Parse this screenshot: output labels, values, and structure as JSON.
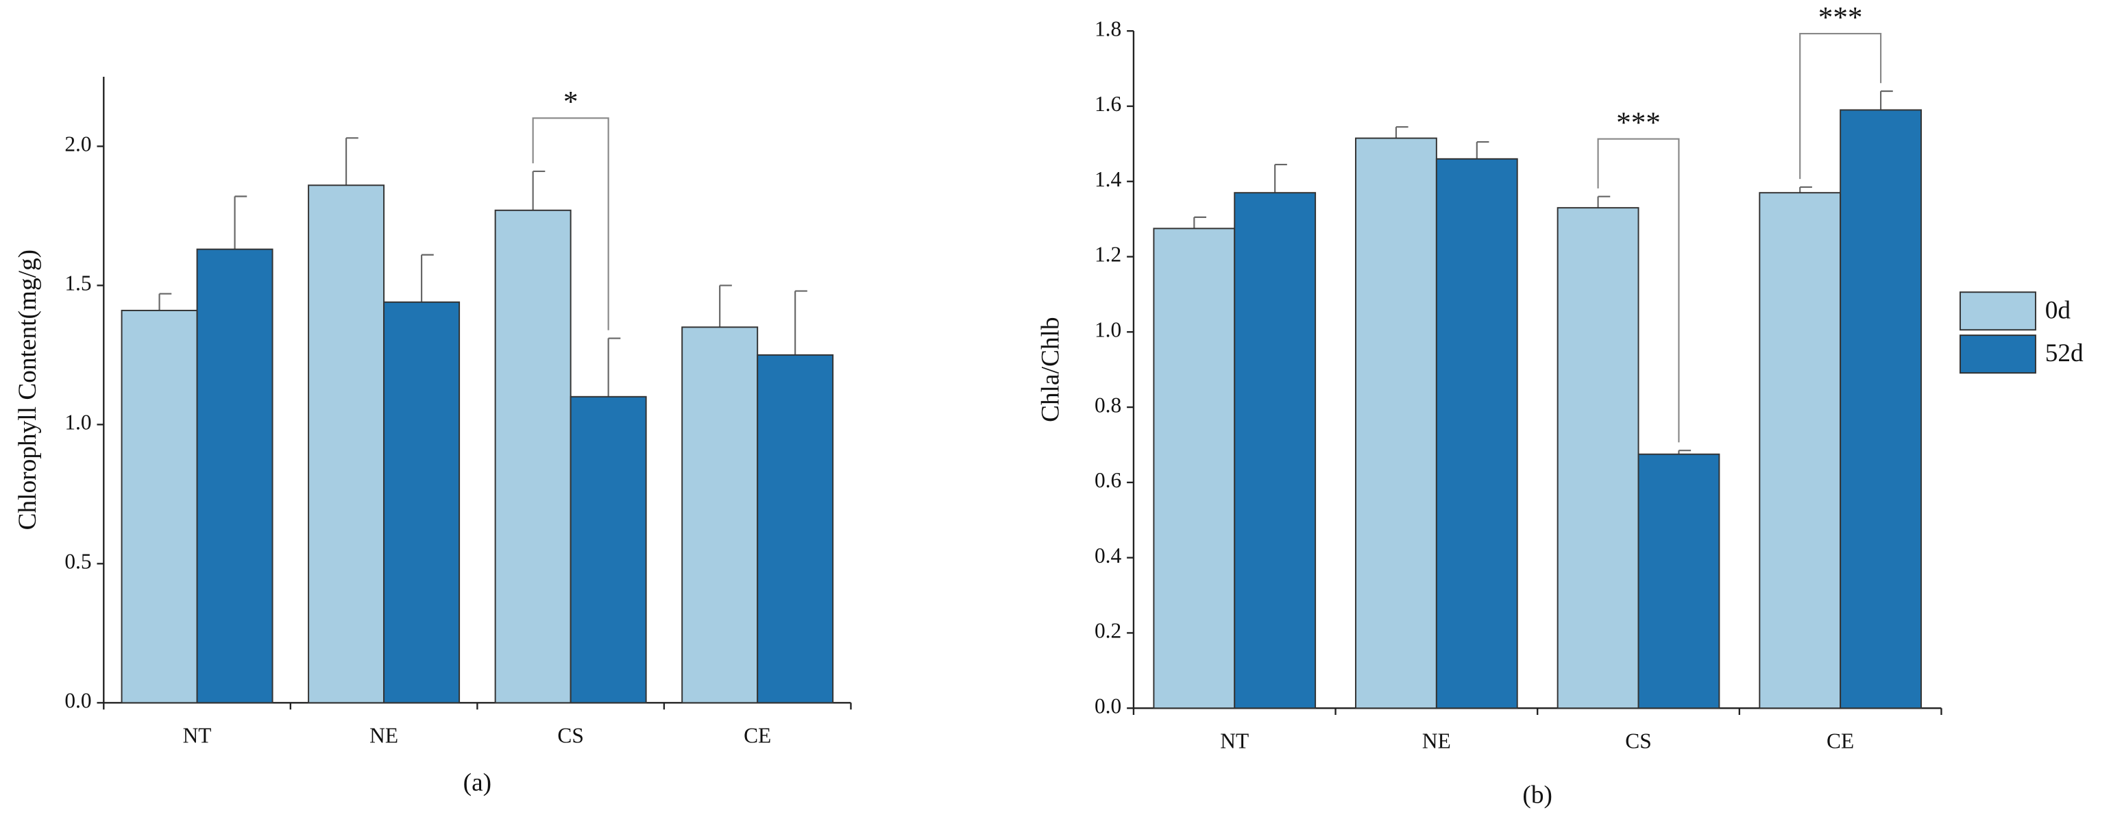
{
  "chart_data": [
    {
      "type": "bar",
      "y_label": "Chlorophyll Content(mg/g)",
      "caption": "(a)",
      "categories": [
        "NT",
        "NE",
        "CS",
        "CE"
      ],
      "series": [
        {
          "name": "0d",
          "color": "#a7cde2",
          "values": [
            1.41,
            1.86,
            1.77,
            1.35
          ],
          "errors": [
            0.06,
            0.17,
            0.14,
            0.15
          ]
        },
        {
          "name": "52d",
          "color": "#1f74b2",
          "values": [
            1.63,
            1.44,
            1.1,
            1.25
          ],
          "errors": [
            0.19,
            0.17,
            0.21,
            0.23
          ]
        }
      ],
      "ylim": [
        0,
        2.25
      ],
      "yticks": [
        {
          "value": 0,
          "label": "0.0"
        },
        0.5,
        {
          "value": 1,
          "label": "1.0"
        },
        1.5,
        {
          "value": 2,
          "label": "2.0"
        }
      ],
      "annotations": [
        {
          "text": "*",
          "category": 2
        }
      ]
    },
    {
      "type": "bar",
      "y_label": "Chla/Chlb",
      "caption": "(b)",
      "legend": "right",
      "categories": [
        "NT",
        "NE",
        "CS",
        "CE"
      ],
      "series": [
        {
          "name": "0d",
          "color": "#a7cde2",
          "values": [
            1.275,
            1.515,
            1.33,
            1.37
          ],
          "errors": [
            0.03,
            0.03,
            0.03,
            0.015
          ]
        },
        {
          "name": "52d",
          "color": "#1f74b2",
          "values": [
            1.37,
            1.46,
            0.675,
            1.59
          ],
          "errors": [
            0.075,
            0.045,
            0.01,
            0.05
          ]
        }
      ],
      "ylim": [
        0,
        1.8
      ],
      "yticks": [
        {
          "value": 0,
          "label": "0.0"
        },
        0.2,
        0.4,
        0.6,
        0.8,
        {
          "value": 1,
          "label": "1.0"
        },
        1.2,
        1.4,
        1.6,
        1.8
      ],
      "annotations": [
        {
          "text": "***",
          "category": 2
        },
        {
          "text": "***",
          "category": 3
        }
      ]
    }
  ]
}
